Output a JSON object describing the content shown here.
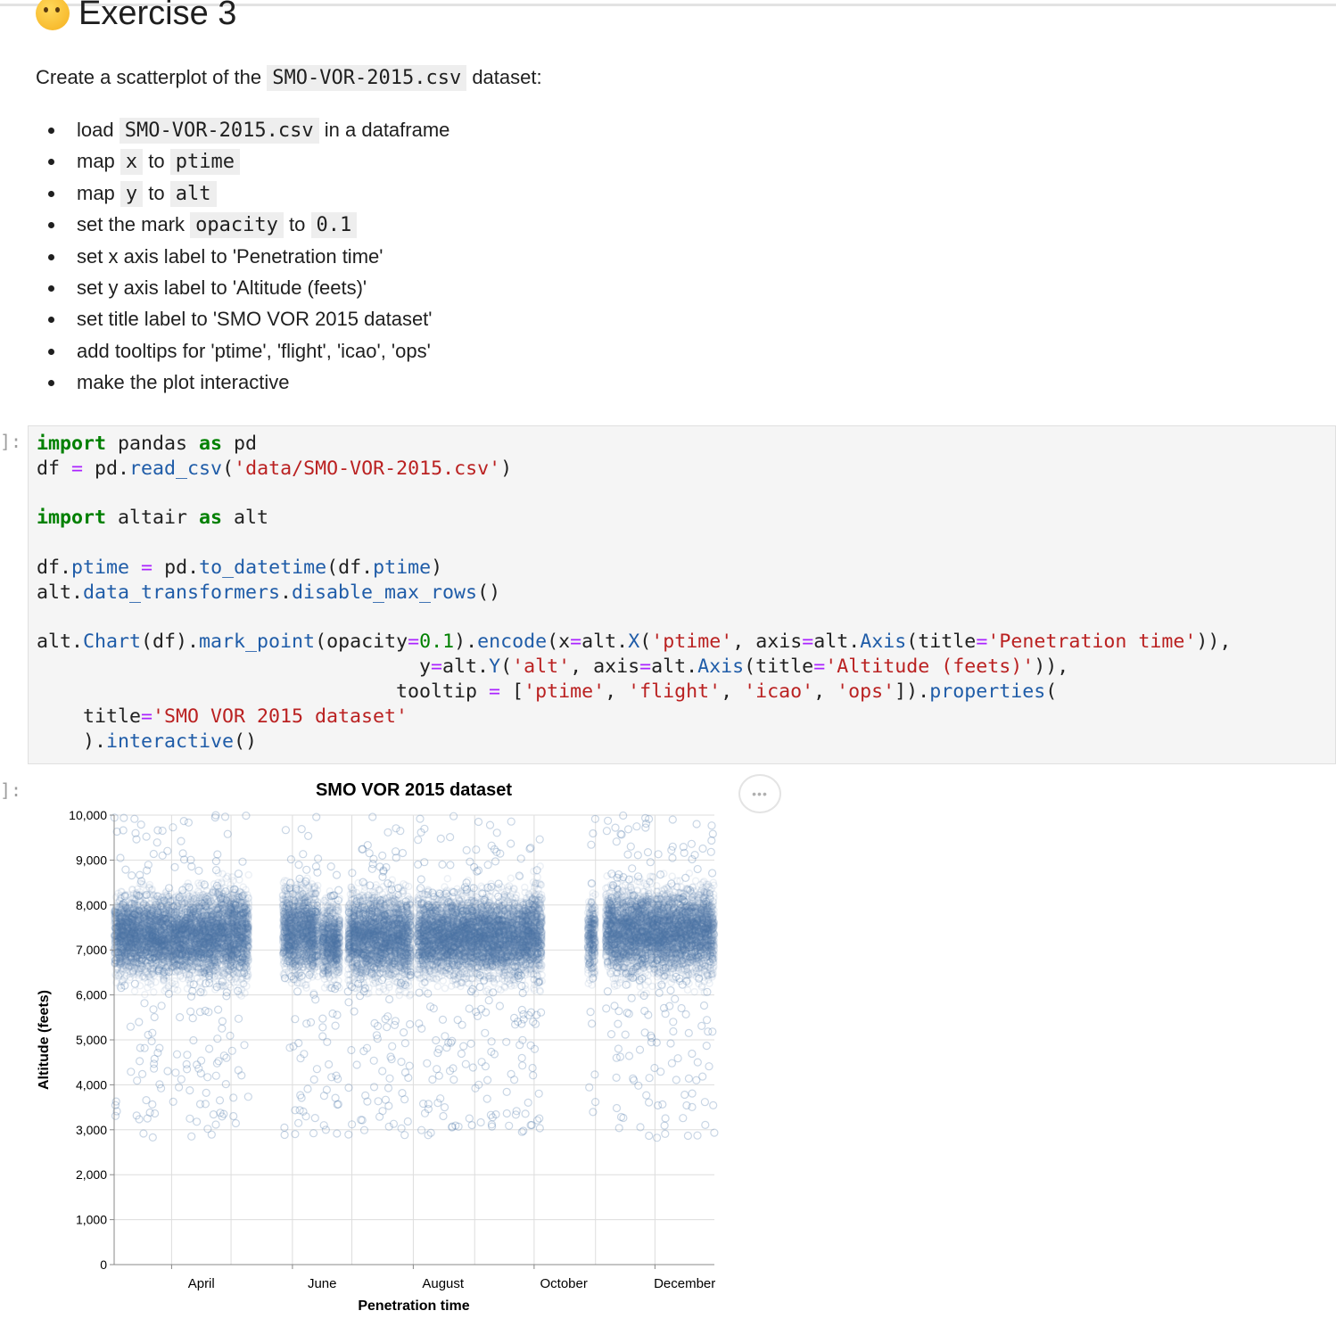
{
  "heading": {
    "icon": "thinking-face-icon",
    "text": "Exercise 3"
  },
  "intro": {
    "prefix": "Create a scatterplot of the",
    "file": "SMO-VOR-2015.csv",
    "suffix": "dataset:"
  },
  "tasks": [
    {
      "parts": [
        {
          "t": "load"
        },
        {
          "c": "SMO-VOR-2015.csv"
        },
        {
          "t": "in a dataframe"
        }
      ]
    },
    {
      "parts": [
        {
          "t": "map"
        },
        {
          "c": "x"
        },
        {
          "t": "to"
        },
        {
          "c": "ptime"
        }
      ]
    },
    {
      "parts": [
        {
          "t": "map"
        },
        {
          "c": "y"
        },
        {
          "t": "to"
        },
        {
          "c": "alt"
        }
      ]
    },
    {
      "parts": [
        {
          "t": "set the mark"
        },
        {
          "c": "opacity"
        },
        {
          "t": "to"
        },
        {
          "c": "0.1"
        }
      ]
    },
    {
      "parts": [
        {
          "t": "set x axis label to 'Penetration time'"
        }
      ]
    },
    {
      "parts": [
        {
          "t": "set y axis label to 'Altitude (feets)'"
        }
      ]
    },
    {
      "parts": [
        {
          "t": "set title label to 'SMO VOR 2015 dataset'"
        }
      ]
    },
    {
      "parts": [
        {
          "t": "add tooltips for 'ptime', 'flight', 'icao', 'ops'"
        }
      ]
    },
    {
      "parts": [
        {
          "t": "make the plot interactive"
        }
      ]
    }
  ],
  "cells": {
    "input_prompt": "]:",
    "output_prompt": "]:",
    "code_lines": [
      [
        {
          "k": "kw",
          "t": "import"
        },
        {
          "t": " pandas "
        },
        {
          "k": "kw",
          "t": "as"
        },
        {
          "t": " pd"
        }
      ],
      [
        {
          "t": "df "
        },
        {
          "k": "op",
          "t": "="
        },
        {
          "t": " pd."
        },
        {
          "k": "fn",
          "t": "read_csv"
        },
        {
          "t": "("
        },
        {
          "k": "st",
          "t": "'data/SMO-VOR-2015.csv'"
        },
        {
          "t": ")"
        }
      ],
      [],
      [
        {
          "k": "kw",
          "t": "import"
        },
        {
          "t": " altair "
        },
        {
          "k": "kw",
          "t": "as"
        },
        {
          "t": " alt"
        }
      ],
      [],
      [
        {
          "t": "df."
        },
        {
          "k": "fn",
          "t": "ptime"
        },
        {
          "t": " "
        },
        {
          "k": "op",
          "t": "="
        },
        {
          "t": " pd."
        },
        {
          "k": "fn",
          "t": "to_datetime"
        },
        {
          "t": "(df."
        },
        {
          "k": "fn",
          "t": "ptime"
        },
        {
          "t": ")"
        }
      ],
      [
        {
          "t": "alt."
        },
        {
          "k": "fn",
          "t": "data_transformers"
        },
        {
          "t": "."
        },
        {
          "k": "fn",
          "t": "disable_max_rows"
        },
        {
          "t": "()"
        }
      ],
      [],
      [
        {
          "t": "alt."
        },
        {
          "k": "fn",
          "t": "Chart"
        },
        {
          "t": "(df)."
        },
        {
          "k": "fn",
          "t": "mark_point"
        },
        {
          "t": "(opacity"
        },
        {
          "k": "op",
          "t": "="
        },
        {
          "k": "nu",
          "t": "0.1"
        },
        {
          "t": ")."
        },
        {
          "k": "fn",
          "t": "encode"
        },
        {
          "t": "(x"
        },
        {
          "k": "op",
          "t": "="
        },
        {
          "t": "alt."
        },
        {
          "k": "fn",
          "t": "X"
        },
        {
          "t": "("
        },
        {
          "k": "st",
          "t": "'ptime'"
        },
        {
          "t": ", axis"
        },
        {
          "k": "op",
          "t": "="
        },
        {
          "t": "alt."
        },
        {
          "k": "fn",
          "t": "Axis"
        },
        {
          "t": "(title"
        },
        {
          "k": "op",
          "t": "="
        },
        {
          "k": "st",
          "t": "'Penetration time'"
        },
        {
          "t": ")),"
        }
      ],
      [
        {
          "t": "                                 y"
        },
        {
          "k": "op",
          "t": "="
        },
        {
          "t": "alt."
        },
        {
          "k": "fn",
          "t": "Y"
        },
        {
          "t": "("
        },
        {
          "k": "st",
          "t": "'alt'"
        },
        {
          "t": ", axis"
        },
        {
          "k": "op",
          "t": "="
        },
        {
          "t": "alt."
        },
        {
          "k": "fn",
          "t": "Axis"
        },
        {
          "t": "(title"
        },
        {
          "k": "op",
          "t": "="
        },
        {
          "k": "st",
          "t": "'Altitude (feets)'"
        },
        {
          "t": ")),"
        }
      ],
      [
        {
          "t": "                               tooltip "
        },
        {
          "k": "op",
          "t": "="
        },
        {
          "t": " ["
        },
        {
          "k": "st",
          "t": "'ptime'"
        },
        {
          "t": ", "
        },
        {
          "k": "st",
          "t": "'flight'"
        },
        {
          "t": ", "
        },
        {
          "k": "st",
          "t": "'icao'"
        },
        {
          "t": ", "
        },
        {
          "k": "st",
          "t": "'ops'"
        },
        {
          "t": "])."
        },
        {
          "k": "fn",
          "t": "properties"
        },
        {
          "t": "("
        }
      ],
      [
        {
          "t": "    title"
        },
        {
          "k": "op",
          "t": "="
        },
        {
          "k": "st",
          "t": "'SMO VOR 2015 dataset'"
        }
      ],
      [
        {
          "t": "    )."
        },
        {
          "k": "fn",
          "t": "interactive"
        },
        {
          "t": "()"
        }
      ]
    ]
  },
  "actions_button": {
    "icon": "more-horizontal-icon",
    "label": "•••"
  },
  "chart_data": {
    "type": "scatter",
    "title": "SMO VOR 2015 dataset",
    "xlabel": "Penetration time",
    "ylabel": "Altitude (feets)",
    "x_scale": "time",
    "xlim": [
      "2015-03-03",
      "2015-12-31"
    ],
    "ylim": [
      0,
      10000
    ],
    "yticks": [
      0,
      1000,
      2000,
      3000,
      4000,
      5000,
      6000,
      7000,
      8000,
      9000,
      10000
    ],
    "ytick_labels": [
      "0",
      "1,000",
      "2,000",
      "3,000",
      "4,000",
      "5,000",
      "6,000",
      "7,000",
      "8,000",
      "9,000",
      "10,000"
    ],
    "xticks": [
      "2015-04-01",
      "2015-06-01",
      "2015-08-01",
      "2015-10-01",
      "2015-12-01"
    ],
    "xtick_labels": [
      "April",
      "June",
      "August",
      "October",
      "December"
    ],
    "grid": true,
    "opacity": 0.1,
    "color": "#4c78a8",
    "density_clusters": [
      {
        "x": [
          "2015-03-03",
          "2015-04-24"
        ],
        "y_center": 7300,
        "y_spread": 420
      },
      {
        "x": [
          "2015-04-24",
          "2015-05-10"
        ],
        "y_center": 7400,
        "y_spread": 480
      },
      {
        "x": [
          "2015-05-27",
          "2015-06-14"
        ],
        "y_center": 7400,
        "y_spread": 440
      },
      {
        "x": [
          "2015-06-16",
          "2015-06-25"
        ],
        "y_center": 7200,
        "y_spread": 380
      },
      {
        "x": [
          "2015-06-29",
          "2015-07-31"
        ],
        "y_center": 7300,
        "y_spread": 450
      },
      {
        "x": [
          "2015-08-03",
          "2015-09-30"
        ],
        "y_center": 7300,
        "y_spread": 420
      },
      {
        "x": [
          "2015-09-30",
          "2015-10-05"
        ],
        "y_center": 7400,
        "y_spread": 500
      },
      {
        "x": [
          "2015-10-28",
          "2015-11-01"
        ],
        "y_center": 7300,
        "y_spread": 400
      },
      {
        "x": [
          "2015-11-06",
          "2015-12-31"
        ],
        "y_center": 7400,
        "y_spread": 440
      }
    ],
    "outlier_range": [
      2800,
      10000
    ]
  }
}
